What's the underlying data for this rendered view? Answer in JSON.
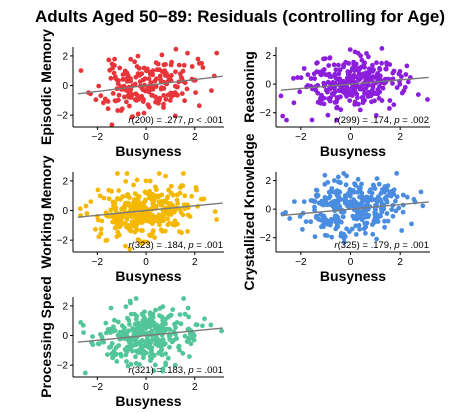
{
  "title": "Adults Aged 50−89: Residuals (controlling for Age)",
  "chart_data": [
    {
      "type": "scatter",
      "ylabel": "Episodic Memory",
      "xlabel": "Busyness",
      "color": "#e8353a",
      "annotation": {
        "prefix": "r",
        "df": "(200)",
        "rval": " = .277, ",
        "p_italic": "p",
        "ptext": " < .001"
      },
      "xlim": [
        -3,
        3.2
      ],
      "ylim": [
        -2.8,
        2.6
      ],
      "xticks": [
        -2,
        0,
        2
      ],
      "yticks": [
        -2,
        0,
        2
      ],
      "fit": {
        "slope": 0.2,
        "intercept": 0.0
      },
      "n": 200,
      "seed": 11,
      "x_sd": 1.0,
      "resid_sd": 0.9
    },
    {
      "type": "scatter",
      "ylabel": "Reasoning",
      "xlabel": "Busyness",
      "color": "#8b1fdc",
      "annotation": {
        "prefix": "r",
        "df": "(299)",
        "rval": " = .174, ",
        "p_italic": "p",
        "ptext": " = .002"
      },
      "xlim": [
        -3,
        3.2
      ],
      "ylim": [
        -3.0,
        2.6
      ],
      "xticks": [
        -2,
        0,
        2
      ],
      "yticks": [
        -2,
        0,
        2
      ],
      "fit": {
        "slope": 0.15,
        "intercept": 0.0
      },
      "n": 299,
      "seed": 23,
      "x_sd": 1.0,
      "resid_sd": 0.95
    },
    {
      "type": "scatter",
      "ylabel": "Working Memory",
      "xlabel": "Busyness",
      "color": "#f5b800",
      "annotation": {
        "prefix": "r",
        "df": "(323)",
        "rval": " = .184, ",
        "p_italic": "p",
        "ptext": " = .001"
      },
      "xlim": [
        -3,
        3.2
      ],
      "ylim": [
        -2.8,
        2.6
      ],
      "xticks": [
        -2,
        0,
        2
      ],
      "yticks": [
        -2,
        0,
        2
      ],
      "fit": {
        "slope": 0.16,
        "intercept": 0.0
      },
      "n": 323,
      "seed": 37,
      "x_sd": 1.0,
      "resid_sd": 0.9
    },
    {
      "type": "scatter",
      "ylabel": "Crystallized Knowledge",
      "xlabel": "Busyness",
      "color": "#4a8de0",
      "annotation": {
        "prefix": "r",
        "df": "(325)",
        "rval": " = .179, ",
        "p_italic": "p",
        "ptext": " = .001"
      },
      "xlim": [
        -3,
        3.2
      ],
      "ylim": [
        -3.0,
        2.6
      ],
      "xticks": [
        -2,
        0,
        2
      ],
      "yticks": [
        -2,
        0,
        2
      ],
      "fit": {
        "slope": 0.16,
        "intercept": 0.0
      },
      "n": 325,
      "seed": 51,
      "x_sd": 1.0,
      "resid_sd": 0.95
    },
    {
      "type": "scatter",
      "ylabel": "Processing Speed",
      "xlabel": "Busyness",
      "color": "#52c69a",
      "annotation": {
        "prefix": "r",
        "df": "(321)",
        "rval": " = .183, ",
        "p_italic": "p",
        "ptext": " = .001"
      },
      "xlim": [
        -3,
        3.2
      ],
      "ylim": [
        -2.8,
        2.6
      ],
      "xticks": [
        -2,
        0,
        2
      ],
      "yticks": [
        -2,
        0,
        2
      ],
      "fit": {
        "slope": 0.16,
        "intercept": 0.0
      },
      "n": 321,
      "seed": 67,
      "x_sd": 1.0,
      "resid_sd": 0.9
    }
  ]
}
